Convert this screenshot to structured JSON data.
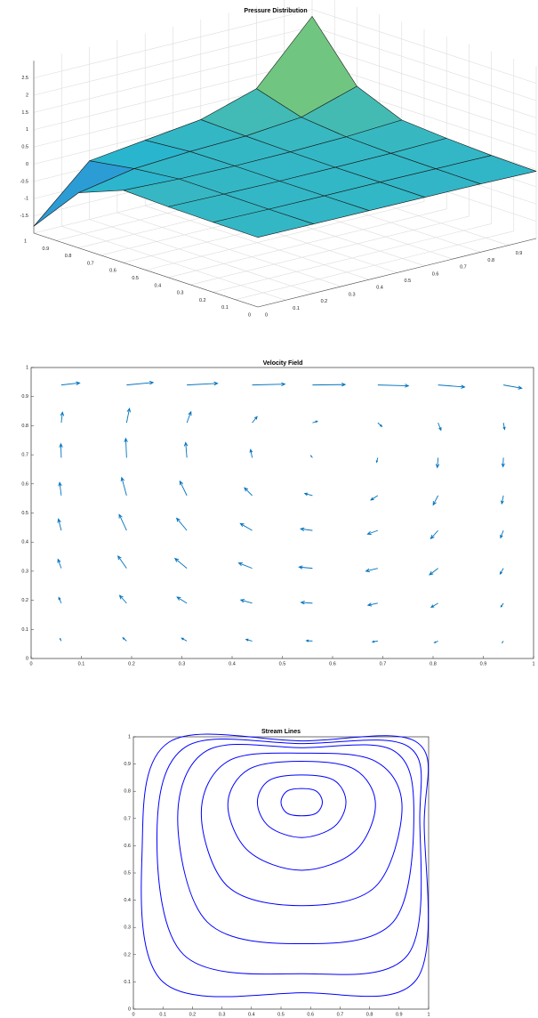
{
  "chart_data": [
    {
      "type": "surface",
      "title": "Pressure Distribution",
      "x": [
        0,
        0.2,
        0.4,
        0.6,
        0.8,
        1
      ],
      "y": [
        0,
        0.2,
        0.4,
        0.6,
        0.8,
        1
      ],
      "z": [
        [
          0.02,
          0.01,
          0.0,
          -0.01,
          -0.02,
          -0.05
        ],
        [
          0.03,
          0.01,
          0.0,
          0.0,
          -0.01,
          -0.02
        ],
        [
          0.05,
          0.02,
          0.0,
          0.0,
          0.01,
          0.05
        ],
        [
          0.1,
          0.03,
          0.01,
          0.02,
          0.06,
          0.15
        ],
        [
          -0.4,
          -0.1,
          0.0,
          0.05,
          0.2,
          0.7
        ],
        [
          -1.8,
          -0.3,
          -0.1,
          0.1,
          0.6,
          2.3
        ]
      ],
      "xlim": [
        0,
        1
      ],
      "ylim": [
        0,
        1
      ],
      "zlim": [
        -2,
        3
      ],
      "xticks": [
        0,
        0.1,
        0.2,
        0.3,
        0.4,
        0.5,
        0.6,
        0.7,
        0.8,
        0.9
      ],
      "yticks": [
        0,
        0.1,
        0.2,
        0.3,
        0.4,
        0.5,
        0.6,
        0.7,
        0.8,
        0.9,
        1
      ],
      "zticks": [
        -1.5,
        -1,
        -0.5,
        0,
        0.5,
        1,
        1.5,
        2,
        2.5
      ],
      "grid": true
    },
    {
      "type": "quiver",
      "title": "Velocity Field",
      "color": "#0072bd",
      "x": [
        0.06,
        0.19,
        0.31,
        0.44,
        0.56,
        0.69,
        0.81,
        0.94
      ],
      "y": [
        0.06,
        0.19,
        0.31,
        0.44,
        0.56,
        0.69,
        0.81,
        0.94
      ],
      "u": [
        [
          -0.03,
          -0.09,
          -0.13,
          -0.15,
          -0.15,
          -0.13,
          -0.09,
          -0.03
        ],
        [
          -0.06,
          -0.17,
          -0.24,
          -0.28,
          -0.28,
          -0.24,
          -0.17,
          -0.06
        ],
        [
          -0.08,
          -0.21,
          -0.29,
          -0.33,
          -0.33,
          -0.29,
          -0.21,
          -0.08
        ],
        [
          -0.07,
          -0.18,
          -0.25,
          -0.29,
          -0.29,
          -0.25,
          -0.18,
          -0.07
        ],
        [
          -0.04,
          -0.12,
          -0.17,
          -0.19,
          -0.19,
          -0.17,
          -0.12,
          -0.04
        ],
        [
          -0.01,
          -0.02,
          -0.03,
          -0.04,
          -0.04,
          -0.03,
          -0.02,
          -0.01
        ],
        [
          0.03,
          0.07,
          0.1,
          0.12,
          0.12,
          0.1,
          0.07,
          0.03
        ],
        [
          0.45,
          0.65,
          0.75,
          0.8,
          0.8,
          0.75,
          0.65,
          0.45
        ]
      ],
      "v": [
        [
          0.06,
          0.08,
          0.07,
          0.04,
          0.01,
          -0.02,
          -0.04,
          -0.04
        ],
        [
          0.14,
          0.19,
          0.15,
          0.08,
          0.02,
          -0.05,
          -0.1,
          -0.09
        ],
        [
          0.22,
          0.3,
          0.24,
          0.13,
          0.03,
          -0.07,
          -0.16,
          -0.14
        ],
        [
          0.28,
          0.39,
          0.3,
          0.17,
          0.04,
          -0.09,
          -0.2,
          -0.18
        ],
        [
          0.32,
          0.44,
          0.35,
          0.19,
          0.05,
          -0.11,
          -0.23,
          -0.2
        ],
        [
          0.34,
          0.47,
          0.37,
          0.2,
          0.05,
          -0.11,
          -0.24,
          -0.22
        ],
        [
          0.26,
          0.35,
          0.27,
          0.15,
          0.04,
          -0.09,
          -0.18,
          -0.16
        ],
        [
          0.05,
          0.06,
          0.04,
          0.02,
          0.01,
          -0.02,
          -0.05,
          -0.08
        ]
      ],
      "xlim": [
        0,
        1
      ],
      "ylim": [
        0,
        1
      ],
      "xticks": [
        0,
        0.1,
        0.2,
        0.3,
        0.4,
        0.5,
        0.6,
        0.7,
        0.8,
        0.9,
        1
      ],
      "yticks": [
        0,
        0.1,
        0.2,
        0.3,
        0.4,
        0.5,
        0.6,
        0.7,
        0.8,
        0.9,
        1
      ]
    },
    {
      "type": "streamline",
      "title": "Stream Lines",
      "color": "#0000ff",
      "series": [
        {
          "x": [
            0.64,
            0.62,
            0.57,
            0.52,
            0.5,
            0.52,
            0.57,
            0.62
          ],
          "y": [
            0.76,
            0.8,
            0.81,
            0.8,
            0.76,
            0.72,
            0.71,
            0.72
          ]
        },
        {
          "x": [
            0.72,
            0.68,
            0.57,
            0.46,
            0.42,
            0.46,
            0.57,
            0.68
          ],
          "y": [
            0.76,
            0.84,
            0.86,
            0.84,
            0.76,
            0.67,
            0.63,
            0.67
          ]
        },
        {
          "x": [
            0.82,
            0.75,
            0.57,
            0.39,
            0.32,
            0.39,
            0.57,
            0.75
          ],
          "y": [
            0.75,
            0.88,
            0.91,
            0.88,
            0.75,
            0.58,
            0.51,
            0.58
          ]
        },
        {
          "x": [
            0.91,
            0.82,
            0.57,
            0.32,
            0.23,
            0.32,
            0.57,
            0.82
          ],
          "y": [
            0.74,
            0.91,
            0.94,
            0.91,
            0.72,
            0.45,
            0.38,
            0.45
          ]
        },
        {
          "x": [
            0.95,
            0.88,
            0.57,
            0.25,
            0.15,
            0.25,
            0.57,
            0.88
          ],
          "y": [
            0.72,
            0.95,
            0.96,
            0.95,
            0.7,
            0.32,
            0.24,
            0.32
          ]
        },
        {
          "x": [
            0.97,
            0.93,
            0.57,
            0.18,
            0.08,
            0.17,
            0.57,
            0.93
          ],
          "y": [
            0.7,
            0.965,
            0.975,
            0.965,
            0.65,
            0.2,
            0.13,
            0.2
          ]
        },
        {
          "x": [
            0.985,
            0.96,
            0.57,
            0.12,
            0.03,
            0.1,
            0.57,
            0.96
          ],
          "y": [
            0.68,
            0.98,
            0.985,
            0.98,
            0.6,
            0.1,
            0.06,
            0.11
          ]
        }
      ],
      "xlim": [
        0,
        1
      ],
      "ylim": [
        0,
        1
      ],
      "xticks": [
        0,
        0.1,
        0.2,
        0.3,
        0.4,
        0.5,
        0.6,
        0.7,
        0.8,
        0.9,
        1
      ],
      "yticks": [
        0,
        0.1,
        0.2,
        0.3,
        0.4,
        0.5,
        0.6,
        0.7,
        0.8,
        0.9,
        1
      ]
    }
  ]
}
